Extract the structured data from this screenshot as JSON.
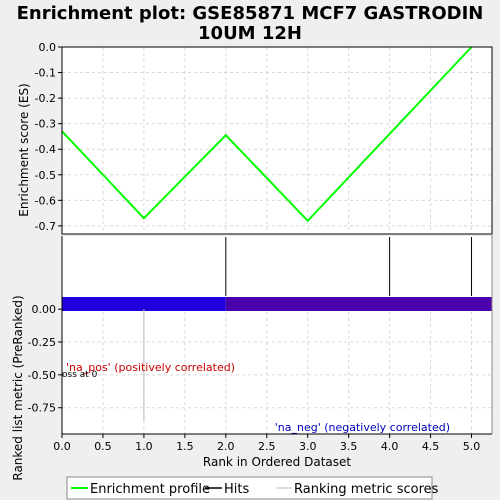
{
  "title_line1": "Enrichment plot: GSE85871 MCF7 GASTRODIN",
  "title_line2": "10UM 12H",
  "colors": {
    "profile": "#00ff00",
    "pos_bar": "#2000dd",
    "neg_bar": "#4a00aa",
    "pos_label": "#cc0000",
    "neg_label": "#0000bb"
  },
  "chart_data": [
    {
      "type": "line",
      "panel": "enrichment",
      "ylabel": "Enrichment score (ES)",
      "ylim": [
        -0.72,
        0.0
      ],
      "yticks": [
        "0.0",
        "-0.1",
        "-0.2",
        "-0.3",
        "-0.4",
        "-0.5",
        "-0.6",
        "-0.7"
      ],
      "ytick_values": [
        0.0,
        -0.1,
        -0.2,
        -0.3,
        -0.4,
        -0.5,
        -0.6,
        -0.7
      ],
      "grid": true,
      "series": [
        {
          "name": "Enrichment profile",
          "x": [
            0,
            1,
            2,
            3,
            5
          ],
          "y": [
            -0.33,
            -0.67,
            -0.345,
            -0.68,
            0.0
          ]
        }
      ]
    },
    {
      "type": "bar",
      "panel": "hits",
      "series": [
        {
          "name": "Hits",
          "x": [
            2,
            4,
            5
          ]
        }
      ]
    },
    {
      "type": "bar",
      "panel": "ranked-metric",
      "xlabel": "Rank in Ordered Dataset",
      "ylabel": "Ranked list metric (PreRanked)",
      "xlim": [
        0,
        5.25
      ],
      "xticks": [
        "0.0",
        "0.5",
        "1.0",
        "1.5",
        "2.0",
        "2.5",
        "3.0",
        "3.5",
        "4.0",
        "4.5",
        "5.0"
      ],
      "xtick_values": [
        0,
        0.5,
        1.0,
        1.5,
        2.0,
        2.5,
        3.0,
        3.5,
        4.0,
        4.5,
        5.0
      ],
      "ylim": [
        -0.95,
        0.1
      ],
      "yticks": [
        "0.00",
        "-0.25",
        "-0.50",
        "-0.75"
      ],
      "ytick_values": [
        0.0,
        -0.25,
        -0.5,
        -0.75
      ],
      "series": [
        {
          "name": "Ranking metric scores",
          "x": [
            1
          ],
          "y": [
            -0.85
          ]
        }
      ],
      "annotations": {
        "pos_label": "'na_pos' (positively correlated)",
        "neg_label": "'na_neg' (negatively correlated)",
        "cross_label": "oss at 0"
      }
    }
  ],
  "legend": {
    "items": [
      {
        "label": "Enrichment profile"
      },
      {
        "label": "Hits"
      },
      {
        "label": "Ranking metric scores"
      }
    ]
  }
}
